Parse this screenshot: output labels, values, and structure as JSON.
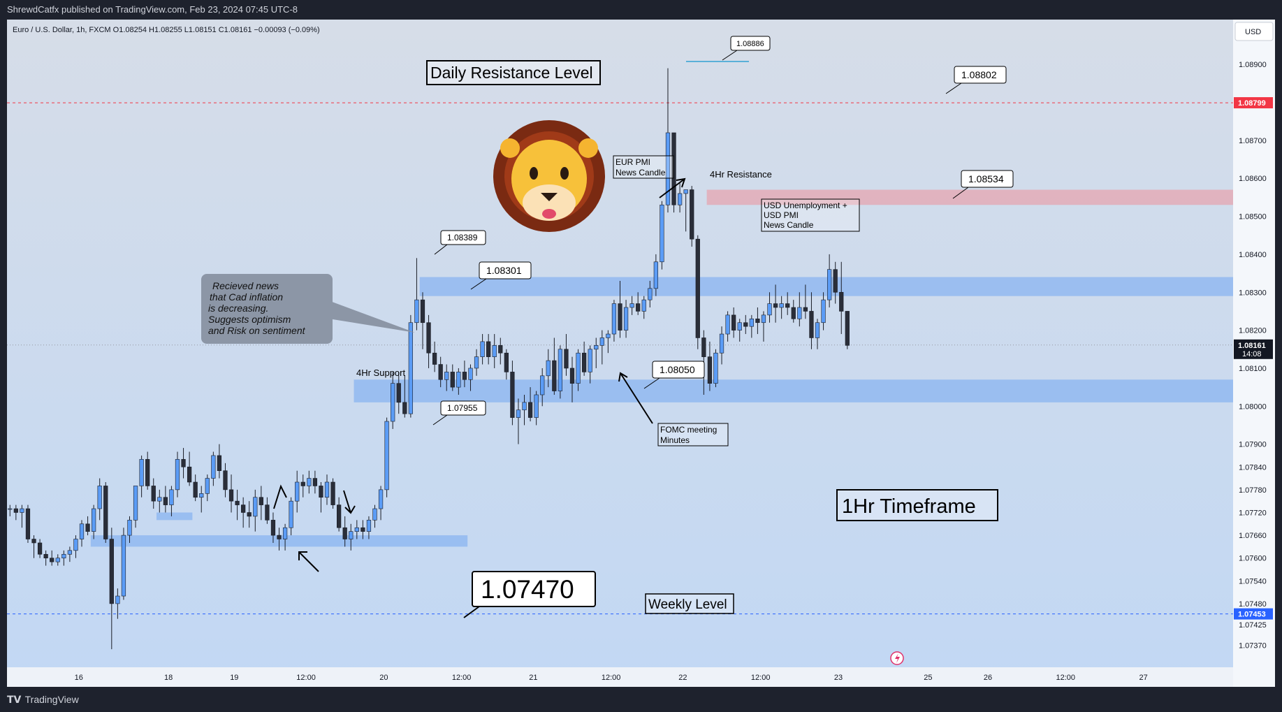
{
  "header": {
    "published": "ShrewdCatfx published on TradingView.com, Feb 23, 2024 07:45 UTC-8"
  },
  "symbol_line": "Euro / U.S. Dollar, 1h, FXCM  O1.08254  H1.08255  L1.08151  C1.08161  −0.00093 (−0.09%)",
  "currency": "USD",
  "footer": {
    "brand": "TradingView"
  },
  "colors": {
    "up": "#5b9cf6",
    "down": "#2a2e39",
    "zone": "#8ab4f0",
    "resistance_zone": "#e6a6b0",
    "red_line": "#f23645",
    "blue_line": "#2962ff"
  },
  "chart_data": {
    "type": "candlestick",
    "y_range": [
      1.0734,
      1.0895
    ],
    "y_ticks": [
      "1.08900",
      "1.08700",
      "1.08600",
      "1.08500",
      "1.08400",
      "1.08300",
      "1.08200",
      "1.08100",
      "1.08000",
      "1.07900",
      "1.07840",
      "1.07780",
      "1.07720",
      "1.07660",
      "1.07600",
      "1.07540",
      "1.07480",
      "1.07425",
      "1.07370"
    ],
    "y_tick_values": [
      1.089,
      1.087,
      1.086,
      1.085,
      1.084,
      1.083,
      1.082,
      1.081,
      1.08,
      1.079,
      1.0784,
      1.0778,
      1.0772,
      1.0766,
      1.076,
      1.0754,
      1.0748,
      1.07425,
      1.0737
    ],
    "x_range": [
      0,
      205
    ],
    "x_ticks": [
      {
        "label": "16",
        "x": 12
      },
      {
        "label": "18",
        "x": 27
      },
      {
        "label": "19",
        "x": 38
      },
      {
        "label": "12:00",
        "x": 50
      },
      {
        "label": "20",
        "x": 63
      },
      {
        "label": "12:00",
        "x": 76
      },
      {
        "label": "21",
        "x": 88
      },
      {
        "label": "12:00",
        "x": 101
      },
      {
        "label": "22",
        "x": 113
      },
      {
        "label": "12:00",
        "x": 126
      },
      {
        "label": "23",
        "x": 139
      },
      {
        "label": "25",
        "x": 154
      },
      {
        "label": "26",
        "x": 164
      },
      {
        "label": "12:00",
        "x": 177
      },
      {
        "label": "27",
        "x": 190
      }
    ],
    "price_labels": [
      {
        "text": "1.08799",
        "value": 1.08799,
        "color": "#f23645"
      },
      {
        "text": "1.08161",
        "sub": "14:08",
        "value": 1.08161,
        "color": "#131722"
      },
      {
        "text": "1.07453",
        "value": 1.07453,
        "color": "#2962ff"
      }
    ],
    "lines": [
      {
        "value": 1.08799,
        "color": "#f23645"
      },
      {
        "value": 1.07453,
        "color": "#2962ff"
      },
      {
        "value": 1.08161,
        "color": "#9598a1",
        "dotted": true
      }
    ],
    "zones": [
      {
        "x0": 14,
        "x1": 77,
        "y0": 1.0763,
        "y1": 1.0766,
        "color": "#8ab4f0"
      },
      {
        "x0": 25,
        "x1": 31,
        "y0": 1.077,
        "y1": 1.0772,
        "color": "#8ab4f0"
      },
      {
        "x0": 58,
        "x1": 205,
        "y0": 1.0801,
        "y1": 1.0807,
        "color": "#8ab4f0"
      },
      {
        "x0": 69,
        "x1": 205,
        "y0": 1.0829,
        "y1": 1.0834,
        "color": "#8ab4f0"
      },
      {
        "x0": 117,
        "x1": 205,
        "y0": 1.0853,
        "y1": 1.0857,
        "color": "#e6a6b0"
      }
    ],
    "candles": [
      [
        1.0773,
        1.0774,
        1.0771,
        1.0773
      ],
      [
        1.0773,
        1.0774,
        1.077,
        1.0772
      ],
      [
        1.0772,
        1.0774,
        1.0768,
        1.0773
      ],
      [
        1.0773,
        1.0774,
        1.0764,
        1.0765
      ],
      [
        1.0765,
        1.0766,
        1.076,
        1.0764
      ],
      [
        1.0764,
        1.0765,
        1.076,
        1.0761
      ],
      [
        1.0761,
        1.0762,
        1.0758,
        1.076
      ],
      [
        1.076,
        1.0762,
        1.0758,
        1.0759
      ],
      [
        1.0759,
        1.0761,
        1.0758,
        1.076
      ],
      [
        1.076,
        1.0762,
        1.0758,
        1.0761
      ],
      [
        1.0761,
        1.0763,
        1.0759,
        1.0762
      ],
      [
        1.0762,
        1.0766,
        1.076,
        1.0765
      ],
      [
        1.0765,
        1.077,
        1.0763,
        1.0769
      ],
      [
        1.0769,
        1.0771,
        1.0766,
        1.0767
      ],
      [
        1.0767,
        1.0774,
        1.0765,
        1.0773
      ],
      [
        1.0773,
        1.0781,
        1.077,
        1.0779
      ],
      [
        1.0779,
        1.078,
        1.0764,
        1.0765
      ],
      [
        1.0765,
        1.0768,
        1.0736,
        1.0748
      ],
      [
        1.0748,
        1.0752,
        1.0744,
        1.075
      ],
      [
        1.075,
        1.0768,
        1.0749,
        1.0766
      ],
      [
        1.0766,
        1.0771,
        1.0764,
        1.077
      ],
      [
        1.077,
        1.0779,
        1.0768,
        1.0779
      ],
      [
        1.0779,
        1.0787,
        1.0776,
        1.0786
      ],
      [
        1.0786,
        1.0788,
        1.0778,
        1.0779
      ],
      [
        1.0779,
        1.0781,
        1.0773,
        1.0775
      ],
      [
        1.0775,
        1.0778,
        1.0772,
        1.0776
      ],
      [
        1.0776,
        1.0779,
        1.0772,
        1.0774
      ],
      [
        1.0774,
        1.0779,
        1.0771,
        1.0778
      ],
      [
        1.0778,
        1.0788,
        1.0776,
        1.0786
      ],
      [
        1.0786,
        1.0789,
        1.0781,
        1.0784
      ],
      [
        1.0784,
        1.0788,
        1.0779,
        1.078
      ],
      [
        1.078,
        1.0782,
        1.0775,
        1.0776
      ],
      [
        1.0776,
        1.0779,
        1.0772,
        1.0777
      ],
      [
        1.0777,
        1.0782,
        1.0775,
        1.0781
      ],
      [
        1.0781,
        1.0788,
        1.0779,
        1.0787
      ],
      [
        1.0787,
        1.079,
        1.0781,
        1.0783
      ],
      [
        1.0783,
        1.0785,
        1.0776,
        1.0778
      ],
      [
        1.0778,
        1.0782,
        1.0772,
        1.0775
      ],
      [
        1.0775,
        1.0778,
        1.077,
        1.0774
      ],
      [
        1.0774,
        1.0776,
        1.0768,
        1.0772
      ],
      [
        1.0772,
        1.0775,
        1.0768,
        1.0771
      ],
      [
        1.0771,
        1.0778,
        1.0767,
        1.0776
      ],
      [
        1.0776,
        1.0779,
        1.077,
        1.0774
      ],
      [
        1.0774,
        1.0776,
        1.0769,
        1.077
      ],
      [
        1.077,
        1.0772,
        1.0764,
        1.0766
      ],
      [
        1.0766,
        1.0768,
        1.0762,
        1.0765
      ],
      [
        1.0765,
        1.0769,
        1.0762,
        1.0768
      ],
      [
        1.0768,
        1.0776,
        1.0766,
        1.0775
      ],
      [
        1.0775,
        1.0783,
        1.0772,
        1.078
      ],
      [
        1.078,
        1.0782,
        1.0776,
        1.0779
      ],
      [
        1.0779,
        1.0783,
        1.0777,
        1.0781
      ],
      [
        1.0781,
        1.0783,
        1.0777,
        1.0779
      ],
      [
        1.0779,
        1.078,
        1.0772,
        1.0776
      ],
      [
        1.0776,
        1.0782,
        1.0774,
        1.078
      ],
      [
        1.078,
        1.0781,
        1.0773,
        1.0774
      ],
      [
        1.0774,
        1.0776,
        1.0767,
        1.0768
      ],
      [
        1.0768,
        1.0771,
        1.0763,
        1.0765
      ],
      [
        1.0765,
        1.0769,
        1.0762,
        1.0767
      ],
      [
        1.0767,
        1.077,
        1.0765,
        1.0768
      ],
      [
        1.0768,
        1.077,
        1.0765,
        1.0767
      ],
      [
        1.0767,
        1.0771,
        1.0765,
        1.077
      ],
      [
        1.077,
        1.0774,
        1.0768,
        1.0773
      ],
      [
        1.0773,
        1.0779,
        1.077,
        1.0778
      ],
      [
        1.0778,
        1.0797,
        1.0776,
        1.0796
      ],
      [
        1.0796,
        1.0809,
        1.0794,
        1.0806
      ],
      [
        1.0806,
        1.0809,
        1.0798,
        1.0801
      ],
      [
        1.0801,
        1.0808,
        1.0797,
        1.0798
      ],
      [
        1.0798,
        1.0824,
        1.0797,
        1.0822
      ],
      [
        1.0822,
        1.0839,
        1.082,
        1.0828
      ],
      [
        1.0828,
        1.083,
        1.0815,
        1.0822
      ],
      [
        1.0822,
        1.0824,
        1.081,
        1.0814
      ],
      [
        1.0814,
        1.0817,
        1.0809,
        1.0811
      ],
      [
        1.0811,
        1.0813,
        1.0805,
        1.0807
      ],
      [
        1.0807,
        1.0811,
        1.0804,
        1.0809
      ],
      [
        1.0809,
        1.0811,
        1.0804,
        1.0805
      ],
      [
        1.0805,
        1.081,
        1.0803,
        1.0809
      ],
      [
        1.0809,
        1.0812,
        1.0805,
        1.0807
      ],
      [
        1.0807,
        1.0811,
        1.0804,
        1.081
      ],
      [
        1.081,
        1.0815,
        1.0808,
        1.0813
      ],
      [
        1.0813,
        1.0819,
        1.0811,
        1.0817
      ],
      [
        1.0817,
        1.0819,
        1.0811,
        1.0813
      ],
      [
        1.0813,
        1.0819,
        1.081,
        1.0816
      ],
      [
        1.0816,
        1.0818,
        1.0811,
        1.0814
      ],
      [
        1.0814,
        1.0815,
        1.0807,
        1.0809
      ],
      [
        1.0809,
        1.0812,
        1.0795,
        1.0797
      ],
      [
        1.0797,
        1.0802,
        1.079,
        1.0799
      ],
      [
        1.0799,
        1.0803,
        1.0795,
        1.0801
      ],
      [
        1.0801,
        1.0805,
        1.0796,
        1.0797
      ],
      [
        1.0797,
        1.0804,
        1.0795,
        1.0803
      ],
      [
        1.0803,
        1.081,
        1.08,
        1.0808
      ],
      [
        1.0808,
        1.0815,
        1.0805,
        1.0812
      ],
      [
        1.0812,
        1.0818,
        1.0803,
        1.0804
      ],
      [
        1.0804,
        1.0816,
        1.0802,
        1.0815
      ],
      [
        1.0815,
        1.0819,
        1.0808,
        1.081
      ],
      [
        1.081,
        1.0813,
        1.0801,
        1.0806
      ],
      [
        1.0806,
        1.0815,
        1.0804,
        1.0814
      ],
      [
        1.0814,
        1.0817,
        1.0808,
        1.0809
      ],
      [
        1.0809,
        1.0816,
        1.0806,
        1.0815
      ],
      [
        1.0815,
        1.0818,
        1.081,
        1.0816
      ],
      [
        1.0816,
        1.082,
        1.0811,
        1.0818
      ],
      [
        1.0818,
        1.082,
        1.0814,
        1.0819
      ],
      [
        1.0819,
        1.0828,
        1.0817,
        1.0827
      ],
      [
        1.0827,
        1.0833,
        1.0818,
        1.082
      ],
      [
        1.082,
        1.0828,
        1.0818,
        1.0826
      ],
      [
        1.0826,
        1.0829,
        1.0824,
        1.0827
      ],
      [
        1.0827,
        1.083,
        1.0824,
        1.0825
      ],
      [
        1.0825,
        1.0829,
        1.0823,
        1.0828
      ],
      [
        1.0828,
        1.0833,
        1.0826,
        1.0831
      ],
      [
        1.0831,
        1.084,
        1.0829,
        1.0838
      ],
      [
        1.0838,
        1.0854,
        1.0836,
        1.0853
      ],
      [
        1.0853,
        1.0889,
        1.0851,
        1.0872
      ],
      [
        1.0872,
        1.0872,
        1.0851,
        1.0853
      ],
      [
        1.0853,
        1.0859,
        1.0851,
        1.0856
      ],
      [
        1.0856,
        1.0857,
        1.0846,
        1.0857
      ],
      [
        1.0857,
        1.0858,
        1.0842,
        1.0844
      ],
      [
        1.0844,
        1.0845,
        1.0815,
        1.0818
      ],
      [
        1.0818,
        1.082,
        1.0803,
        1.0813
      ],
      [
        1.0813,
        1.0817,
        1.0804,
        1.0806
      ],
      [
        1.0806,
        1.0815,
        1.0805,
        1.0814
      ],
      [
        1.0814,
        1.0821,
        1.0811,
        1.0819
      ],
      [
        1.0819,
        1.0825,
        1.0817,
        1.0824
      ],
      [
        1.0824,
        1.0826,
        1.0818,
        1.082
      ],
      [
        1.082,
        1.0823,
        1.0817,
        1.0822
      ],
      [
        1.0822,
        1.0824,
        1.0819,
        1.0821
      ],
      [
        1.0821,
        1.0824,
        1.0818,
        1.0823
      ],
      [
        1.0823,
        1.0826,
        1.0819,
        1.0822
      ],
      [
        1.0822,
        1.0825,
        1.0817,
        1.0824
      ],
      [
        1.0824,
        1.083,
        1.0822,
        1.0827
      ],
      [
        1.0827,
        1.0832,
        1.0822,
        1.0826
      ],
      [
        1.0826,
        1.0829,
        1.0823,
        1.0827
      ],
      [
        1.0827,
        1.083,
        1.0824,
        1.0826
      ],
      [
        1.0826,
        1.0828,
        1.0822,
        1.0823
      ],
      [
        1.0823,
        1.083,
        1.0821,
        1.0826
      ],
      [
        1.0826,
        1.0832,
        1.0823,
        1.0825
      ],
      [
        1.0825,
        1.083,
        1.0815,
        1.0818
      ],
      [
        1.0818,
        1.0823,
        1.0815,
        1.0822
      ],
      [
        1.0822,
        1.083,
        1.082,
        1.0828
      ],
      [
        1.0828,
        1.084,
        1.0826,
        1.0836
      ],
      [
        1.0836,
        1.0838,
        1.0827,
        1.083
      ],
      [
        1.083,
        1.0838,
        1.0819,
        1.0825
      ],
      [
        1.0825,
        1.0825,
        1.0815,
        1.0816
      ]
    ]
  },
  "annotations": {
    "daily_resistance": "Daily Resistance Level",
    "label_1_08886": "1.08886",
    "label_1_08802": "1.08802",
    "label_1_08534": "1.08534",
    "label_1_08389": "1.08389",
    "label_1_08301": "1.08301",
    "label_1_08050": "1.08050",
    "label_1_07955": "1.07955",
    "label_1_07470": "1.07470",
    "eur_pmi_1": "EUR PMI",
    "eur_pmi_2": "News Candle",
    "resistance_4hr": "4Hr Resistance",
    "support_4hr": "4Hr Support",
    "usd_news_1": "USD Unemployment +",
    "usd_news_2": "USD PMI",
    "usd_news_3": "News Candle",
    "cad_news_1": "Recieved news",
    "cad_news_2": "that Cad inflation",
    "cad_news_3": "is decreasing.",
    "cad_news_4": "Suggests optimism",
    "cad_news_5": "and Risk on sentiment",
    "fomc_1": "FOMC meeting",
    "fomc_2": "Minutes",
    "timeframe": "1Hr Timeframe",
    "weekly_level": "Weekly Level"
  }
}
